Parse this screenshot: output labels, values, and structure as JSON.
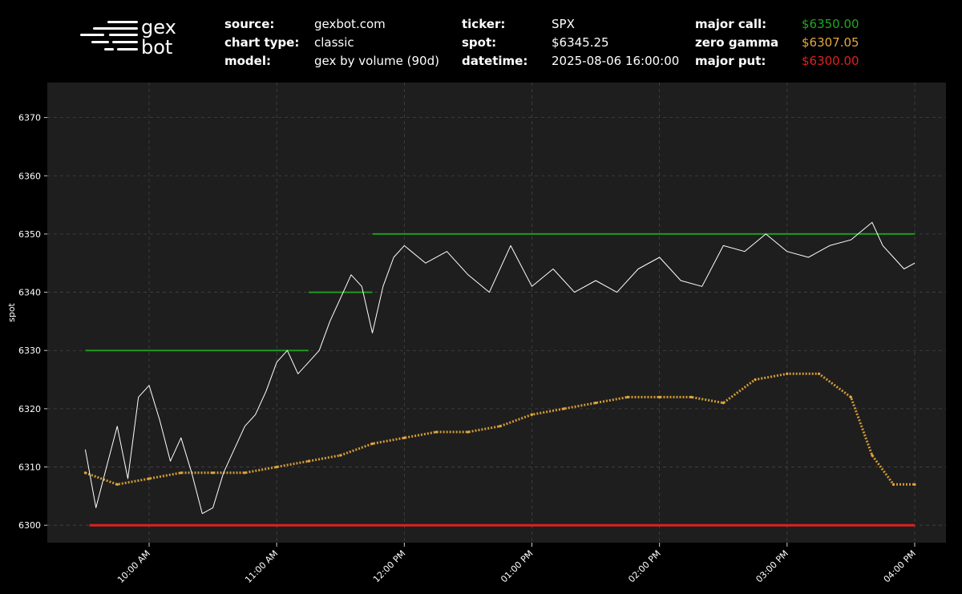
{
  "header": {
    "logo_line1": "gex",
    "logo_line2": "bot",
    "info": [
      {
        "label": "source:",
        "value": "gexbot.com"
      },
      {
        "label": "chart type:",
        "value": "classic"
      },
      {
        "label": "model:",
        "value": "gex by volume (90d)"
      },
      {
        "label": "ticker:",
        "value": "SPX"
      },
      {
        "label": "spot:",
        "value": "$6345.25"
      },
      {
        "label": "datetime:",
        "value": "2025-08-06 16:00:00"
      },
      {
        "label": "major call:",
        "value": "$6350.00",
        "color": "#22a622"
      },
      {
        "label": "zero gamma",
        "value": "$6307.05",
        "color": "#e6a83a"
      },
      {
        "label": "major put:",
        "value": "$6300.00",
        "color": "#e02020"
      }
    ]
  },
  "chart_data": {
    "type": "line",
    "ylabel": "spot",
    "xlabel": "",
    "ylim": [
      6297,
      6376
    ],
    "xlim": [
      "09:30",
      "16:00"
    ],
    "yticks": [
      6300,
      6310,
      6320,
      6330,
      6340,
      6350,
      6360,
      6370
    ],
    "xticks": [
      {
        "t": "10:00",
        "label": "10:00 AM"
      },
      {
        "t": "11:00",
        "label": "11:00 AM"
      },
      {
        "t": "12:00",
        "label": "12:00 PM"
      },
      {
        "t": "13:00",
        "label": "01:00 PM"
      },
      {
        "t": "14:00",
        "label": "02:00 PM"
      },
      {
        "t": "15:00",
        "label": "03:00 PM"
      },
      {
        "t": "16:00",
        "label": "04:00 PM"
      }
    ],
    "grid": true,
    "colors": {
      "spot": "#ffffff",
      "major_call": "#1f9a1f",
      "zero_gamma": "#e6a83a",
      "major_put": "#e02020",
      "plot_bg": "#1e1e1e"
    },
    "series": [
      {
        "name": "spot",
        "x": [
          "09:30",
          "09:35",
          "09:40",
          "09:45",
          "09:50",
          "09:55",
          "10:00",
          "10:05",
          "10:10",
          "10:15",
          "10:20",
          "10:25",
          "10:30",
          "10:35",
          "10:40",
          "10:45",
          "10:50",
          "10:55",
          "11:00",
          "11:05",
          "11:10",
          "11:15",
          "11:20",
          "11:25",
          "11:30",
          "11:35",
          "11:40",
          "11:45",
          "11:50",
          "11:55",
          "12:00",
          "12:10",
          "12:20",
          "12:30",
          "12:40",
          "12:50",
          "13:00",
          "13:10",
          "13:20",
          "13:30",
          "13:40",
          "13:50",
          "14:00",
          "14:10",
          "14:20",
          "14:30",
          "14:40",
          "14:50",
          "15:00",
          "15:10",
          "15:20",
          "15:30",
          "15:40",
          "15:45",
          "15:50",
          "15:55",
          "16:00"
        ],
        "y": [
          6313,
          6303,
          6310,
          6317,
          6308,
          6322,
          6324,
          6318,
          6311,
          6315,
          6309,
          6302,
          6303,
          6309,
          6313,
          6317,
          6319,
          6323,
          6328,
          6330,
          6326,
          6328,
          6330,
          6335,
          6339,
          6343,
          6341,
          6333,
          6341,
          6346,
          6348,
          6345,
          6347,
          6343,
          6340,
          6348,
          6341,
          6344,
          6340,
          6342,
          6340,
          6344,
          6346,
          6342,
          6341,
          6348,
          6347,
          6350,
          6347,
          6346,
          6348,
          6349,
          6352,
          6348,
          6346,
          6344,
          6345
        ]
      },
      {
        "name": "major call",
        "segments": [
          {
            "x": [
              "09:30",
              "11:15"
            ],
            "y": 6330
          },
          {
            "x": [
              "11:15",
              "11:45"
            ],
            "y": 6340
          },
          {
            "x": [
              "11:45",
              "16:00"
            ],
            "y": 6350
          }
        ]
      },
      {
        "name": "zero gamma",
        "x": [
          "09:30",
          "09:45",
          "10:00",
          "10:15",
          "10:30",
          "10:45",
          "11:00",
          "11:15",
          "11:30",
          "11:45",
          "12:00",
          "12:15",
          "12:30",
          "12:45",
          "13:00",
          "13:15",
          "13:30",
          "13:45",
          "14:00",
          "14:15",
          "14:30",
          "14:45",
          "15:00",
          "15:15",
          "15:30",
          "15:40",
          "15:50",
          "16:00"
        ],
        "y": [
          6309,
          6307,
          6308,
          6309,
          6309,
          6309,
          6310,
          6311,
          6312,
          6314,
          6315,
          6316,
          6316,
          6317,
          6319,
          6320,
          6321,
          6322,
          6322,
          6322,
          6321,
          6325,
          6326,
          6326,
          6322,
          6312,
          6307,
          6307
        ]
      },
      {
        "name": "major put",
        "segments": [
          {
            "x": [
              "09:32",
              "16:00"
            ],
            "y": 6300
          }
        ]
      }
    ]
  }
}
